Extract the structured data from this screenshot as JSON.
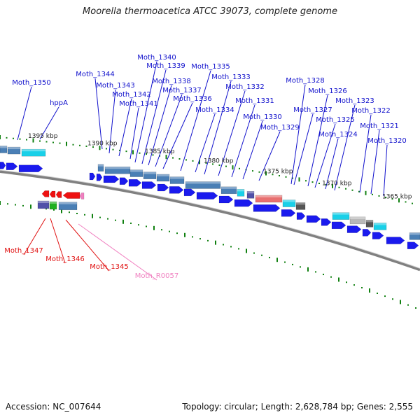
{
  "title": "Moorella thermoacetica ATCC 39073, complete genome",
  "footer": {
    "accession": "Accession: NC_007644",
    "summary": "Topology: circular; Length: 2,628,784 bp; Genes: 2,555"
  },
  "colors": {
    "label_plus": "#1010cc",
    "label_minus": "#e01010",
    "label_rna": "#f080c0",
    "arrow": "#1a1aee",
    "backbone": "#808080",
    "tick": "#108010",
    "cog_steel": "#4a7fb5",
    "cog_cyan": "#19d0e8",
    "cog_salmon": "#e87070",
    "cog_gray": "#b8b8b8",
    "cog_dark": "#555555",
    "cog_purple": "#5050a8",
    "cog_green": "#20b020"
  },
  "scale_labels": [
    {
      "text": "1395 kbp"
    },
    {
      "text": "1390 kbp"
    },
    {
      "text": "1385 kbp"
    },
    {
      "text": "1380 kbp"
    },
    {
      "text": "1375 kbp"
    },
    {
      "text": "1370 kbp"
    },
    {
      "text": "1365 kbp"
    }
  ],
  "plus_genes": [
    "Moth_1350",
    "hppA",
    "Moth_1344",
    "Moth_1343",
    "Moth_1342",
    "Moth_1341",
    "Moth_1340",
    "Moth_1339",
    "Moth_1338",
    "Moth_1337",
    "Moth_1336",
    "Moth_1335",
    "Moth_1334",
    "Moth_1333",
    "Moth_1332",
    "Moth_1331",
    "Moth_1330",
    "Moth_1329",
    "Moth_1328",
    "Moth_1327",
    "Moth_1326",
    "Moth_1325",
    "Moth_1324",
    "Moth_1323",
    "Moth_1322",
    "Moth_1321",
    "Moth_1320"
  ],
  "minus_genes": [
    "Moth_1347",
    "Moth_1346",
    "Moth_1345"
  ],
  "rna_genes": [
    "Moth_R0057"
  ]
}
